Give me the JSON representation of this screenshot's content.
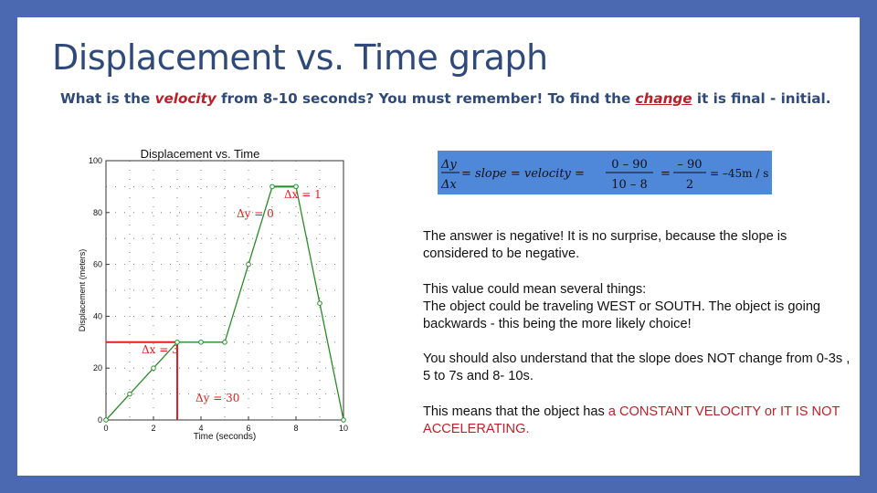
{
  "slide": {
    "title": "Displacement vs. Time graph",
    "subtitle_parts": [
      "What is the ",
      "velocity",
      " from 8-10 seconds? You must remember! To find the ",
      "change",
      " it is final - initial."
    ]
  },
  "chart_data": {
    "type": "line",
    "title": "Displacement vs. Time",
    "xlabel": "Time (seconds)",
    "ylabel": "Displacement (meters)",
    "xlim": [
      0,
      10
    ],
    "ylim": [
      0,
      100
    ],
    "xticks": [
      0,
      2,
      4,
      6,
      8,
      10
    ],
    "yticks": [
      0,
      20,
      40,
      60,
      80,
      100
    ],
    "grid": "dotted",
    "line_color": "#2a8a2a",
    "x": [
      0,
      1,
      2,
      3,
      4,
      5,
      6,
      7,
      8,
      9,
      10
    ],
    "y": [
      0,
      10,
      20,
      30,
      30,
      30,
      60,
      90,
      90,
      45,
      0
    ],
    "annotations": {
      "dx1_label": "Δx = 1",
      "dy0_label": "Δy = 0",
      "dx3_label": "Δx = 3",
      "dy30_label": "Δy = 30",
      "annotation_color": "#e02020"
    }
  },
  "formula": {
    "dy": "Δy",
    "dx": "Δx",
    "middle": "= slope = velocity =",
    "num1": "0 – 90",
    "den1": "10 – 8",
    "eq2": "=",
    "num2": "– 90",
    "den2": "2",
    "result": "= –45m / s",
    "box_color": "#4f87d9"
  },
  "text": {
    "p1": "The answer is negative! It is no surprise, because the slope is considered to be negative.",
    "p2_line1": "This value could mean several things:",
    "p2_line2": "The object could be traveling WEST or SOUTH. The object is going backwards - this being the more likely choice!",
    "p3": "You should also understand that the slope does NOT change from 0-3s , 5 to 7s and 8- 10s.",
    "p4_start": "This means that the object has ",
    "p4_red": "a CONSTANT VELOCITY or IT IS NOT ACCELERATING."
  }
}
